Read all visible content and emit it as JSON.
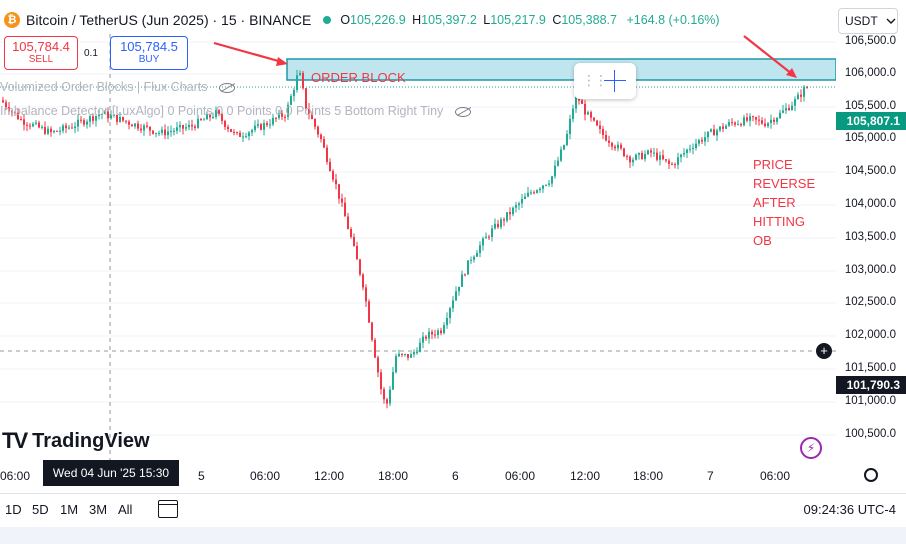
{
  "header": {
    "symbol_title": "Bitcoin / TetherUS (Jun 2025) · 15 · BINANCE",
    "coin_glyph": "₿",
    "ohlc": {
      "o_label": "O",
      "o_value": "105,226.9",
      "h_label": "H",
      "h_value": "105,397.2",
      "l_label": "L",
      "l_value": "105,217.9",
      "c_label": "C",
      "c_value": "105,388.7",
      "change": "+164.8 (+0.16%)"
    }
  },
  "currency": {
    "value": "USDT",
    "icon": "chevron-down-icon"
  },
  "trade": {
    "sell_price": "105,784.4",
    "sell_label": "SELL",
    "spread": "0.1",
    "buy_price": "105,784.5",
    "buy_label": "BUY"
  },
  "indicators": [
    {
      "label": "Volumized Order Blocks | Flux Charts",
      "icon": "eye-off-icon"
    },
    {
      "label": "Imbalance Detector [LuxAlgo] 0 Points 0 0 Points 0 0 Points 5 Bottom Right Tiny",
      "icon": "eye-off-icon"
    }
  ],
  "annotations": {
    "order_block": "ORDER BLOCK",
    "note_lines": [
      "PRICE",
      "REVERSE",
      "AFTER",
      "HITTING",
      "OB"
    ]
  },
  "price_axis": {
    "ticks": [
      "106,500.0",
      "106,000.0",
      "105,500.0",
      "105,000.0",
      "104,500.0",
      "104,000.0",
      "103,500.0",
      "103,000.0",
      "102,500.0",
      "102,000.0",
      "101,500.0",
      "101,000.0",
      "100,500.0"
    ],
    "current_price": "105,807.1",
    "crosshair_price": "101,790.3"
  },
  "time_axis": {
    "labels": [
      "06:00",
      "5",
      "06:00",
      "12:00",
      "18:00",
      "6",
      "06:00",
      "12:00",
      "18:00",
      "7",
      "06:00"
    ],
    "crosshair_date": "Wed 04 Jun '25   15:30"
  },
  "logo": {
    "text": "TradingView",
    "mark": "TV"
  },
  "bottom_bar": {
    "ranges": [
      "1D",
      "5D",
      "1M",
      "3M",
      "All"
    ],
    "clock": "09:24:36 UTC-4"
  },
  "colors": {
    "up": "#22ab94",
    "down": "#f23645",
    "order_block_fill": "#bfe6ee",
    "order_block_line": "#1b9aaa",
    "annotation": "#f23645"
  }
}
